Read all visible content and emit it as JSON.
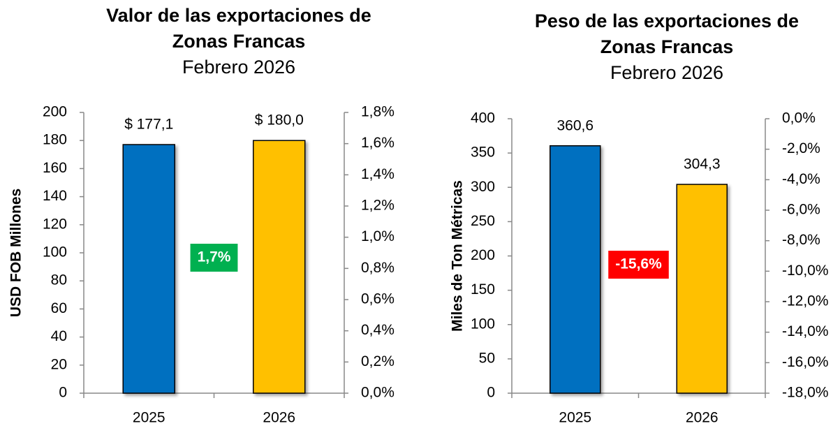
{
  "chart_data": [
    {
      "type": "bar",
      "title": "Valor de las exportaciones de Zonas Francas",
      "subtitle": "Febrero 2026",
      "y_label": "USD FOB Millones",
      "categories": [
        "2025",
        "2026"
      ],
      "values": [
        177.1,
        180.0
      ],
      "value_labels": [
        "$ 177,1",
        "$ 180,0"
      ],
      "colors": [
        "#0070c0",
        "#ffc000"
      ],
      "ylim": [
        0,
        200
      ],
      "yticks": [
        0,
        20,
        40,
        60,
        80,
        100,
        120,
        140,
        160,
        180,
        200
      ],
      "y2lim": [
        0,
        1.8
      ],
      "y2ticks": [
        {
          "value": 0,
          "label": "0,0%"
        },
        {
          "value": 0.2,
          "label": "0,2%"
        },
        {
          "value": 0.4,
          "label": "0,4%"
        },
        {
          "value": 0.6,
          "label": "0,6%"
        },
        {
          "value": 0.8,
          "label": "0,8%"
        },
        {
          "value": 1.0,
          "label": "1,0%"
        },
        {
          "value": 1.2,
          "label": "1,2%"
        },
        {
          "value": 1.4,
          "label": "1,4%"
        },
        {
          "value": 1.6,
          "label": "1,6%"
        },
        {
          "value": 1.8,
          "label": "1,8%"
        }
      ],
      "annotation": {
        "text": "1,7%",
        "color": "#00b050"
      }
    },
    {
      "type": "bar",
      "title": "Peso de las exportaciones de Zonas Francas",
      "subtitle": "Febrero 2026",
      "y_label": "Miles de Ton Métricas",
      "categories": [
        "2025",
        "2026"
      ],
      "values": [
        360.6,
        304.3
      ],
      "value_labels": [
        "360,6",
        "304,3"
      ],
      "colors": [
        "#0070c0",
        "#ffc000"
      ],
      "ylim": [
        0,
        400
      ],
      "yticks": [
        0,
        50,
        100,
        150,
        200,
        250,
        300,
        350,
        400
      ],
      "y2lim": [
        -18,
        0
      ],
      "y2ticks": [
        {
          "value": 0,
          "label": "0,0%"
        },
        {
          "value": -2,
          "label": "-2,0%"
        },
        {
          "value": -4,
          "label": "-4,0%"
        },
        {
          "value": -6,
          "label": "-6,0%"
        },
        {
          "value": -8,
          "label": "-8,0%"
        },
        {
          "value": -10,
          "label": "-10,0%"
        },
        {
          "value": -12,
          "label": "-12,0%"
        },
        {
          "value": -14,
          "label": "-14,0%"
        },
        {
          "value": -16,
          "label": "-16,0%"
        },
        {
          "value": -18,
          "label": "-18,0%"
        }
      ],
      "annotation": {
        "text": "-15,6%",
        "color": "#ff0000"
      }
    }
  ]
}
